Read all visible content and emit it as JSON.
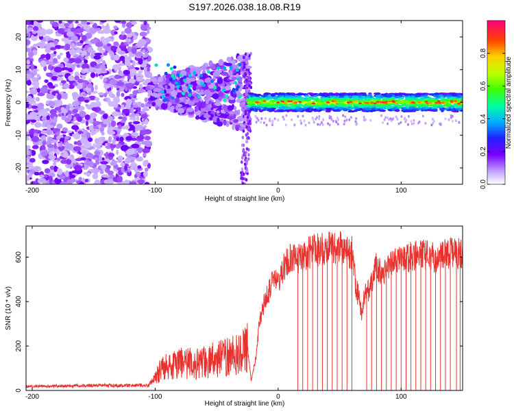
{
  "title": "S197.2026.038.18.08.R19",
  "colors": {
    "snr_line": "#e8322e",
    "spectrogram_low": "#7a00ff",
    "spectrogram_high": "#ff004c"
  },
  "chart_data": [
    {
      "type": "heatmap",
      "name": "spectrogram",
      "xlabel": "Height of straight line (km)",
      "ylabel": "Frequency (Hz)",
      "xlim": [
        -205,
        150
      ],
      "ylim": [
        -25,
        25
      ],
      "xticks": [
        -200,
        -100,
        0,
        100
      ],
      "yticks": [
        -20,
        -10,
        0,
        10,
        20
      ],
      "colorbar": {
        "label": "Normalized spectral amplitude",
        "range": [
          0,
          1
        ],
        "ticks": [
          "0.0",
          "0.2",
          "0.4",
          "0.6",
          "0.8"
        ]
      },
      "regions": [
        {
          "x_range": [
            -205,
            -105
          ],
          "freq_range": [
            -25,
            25
          ],
          "description_level": 0.2
        },
        {
          "x_range": [
            -105,
            -25
          ],
          "freq_range": [
            -10,
            15
          ],
          "description_level": 0.4
        },
        {
          "x_range": [
            -25,
            150
          ],
          "freq_center": 0,
          "freq_halfwidth": 2.5,
          "description_level": 0.8
        }
      ]
    },
    {
      "type": "line",
      "name": "snr",
      "xlabel": "Height of straight line (km)",
      "ylabel": "SNR (10 * v/v)",
      "xlim": [
        -205,
        150
      ],
      "ylim": [
        0,
        740
      ],
      "xticks": [
        -200,
        -100,
        0,
        100
      ],
      "yticks": [
        0,
        200,
        400,
        600
      ],
      "series": [
        {
          "name": "SNR",
          "x": [
            -205,
            -180,
            -150,
            -120,
            -105,
            -100,
            -95,
            -90,
            -80,
            -70,
            -60,
            -50,
            -40,
            -30,
            -25,
            -22,
            -18,
            -15,
            -12,
            -10,
            -8,
            -5,
            0,
            5,
            10,
            15,
            20,
            25,
            30,
            40,
            50,
            55,
            60,
            63,
            66,
            68,
            70,
            75,
            80,
            85,
            90,
            100,
            110,
            120,
            130,
            140,
            150
          ],
          "y": [
            18,
            20,
            22,
            22,
            25,
            60,
            100,
            110,
            120,
            120,
            125,
            140,
            150,
            170,
            200,
            40,
            150,
            320,
            380,
            420,
            440,
            480,
            490,
            560,
            600,
            580,
            610,
            620,
            630,
            640,
            650,
            620,
            620,
            480,
            400,
            340,
            420,
            470,
            560,
            520,
            560,
            590,
            600,
            610,
            600,
            615,
            620
          ]
        }
      ],
      "dropouts_x": [
        16,
        20,
        24,
        28,
        32,
        36,
        40,
        44,
        48,
        52,
        56,
        60,
        72,
        76,
        80,
        84,
        88,
        92,
        96,
        100,
        104,
        108,
        112,
        116,
        120,
        124,
        128,
        132,
        136,
        140,
        145,
        148
      ]
    }
  ]
}
